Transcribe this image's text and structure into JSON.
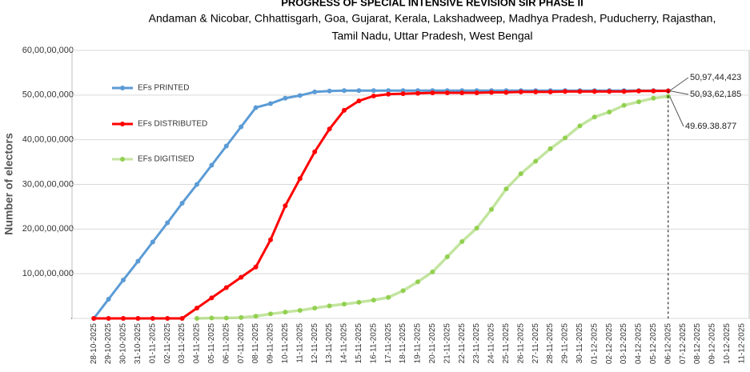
{
  "chart_data": {
    "type": "line",
    "title": "PROGRESS OF SPECIAL INTENSIVE REVISION SIR PHASE II",
    "subtitle": [
      "Andaman & Nicobar, Chhattisgarh, Goa, Gujarat, Kerala, Lakshadweep, Madhya Pradesh, Puducherry, Rajasthan,",
      "Tamil Nadu, Uttar Pradesh, West Bengal"
    ],
    "y_label": "Number of electors",
    "categories": [
      "28-10-2025",
      "29-10-2025",
      "30-10-2025",
      "31-10-2025",
      "01-11-2025",
      "02-11-2025",
      "03-11-2025",
      "04-11-2025",
      "05-11-2025",
      "06-11-2025",
      "07-11-2025",
      "08-11-2025",
      "09-11-2025",
      "10-11-2025",
      "11-11-2025",
      "12-11-2025",
      "13-11-2025",
      "14-11-2025",
      "15-11-2025",
      "16-11-2025",
      "17-11-2025",
      "18-11-2025",
      "19-11-2025",
      "20-11-2025",
      "21-11-2025",
      "22-11-2025",
      "23-11-2025",
      "24-11-2025",
      "25-11-2025",
      "26-11-2025",
      "27-11-2025",
      "28-11-2025",
      "29-11-2025",
      "30-11-2025",
      "01-12-2025",
      "02-12-2025",
      "03-12-2025",
      "04-12-2025",
      "05-12-2025",
      "06-12-2025",
      "07-12-2025",
      "08-12-2025",
      "09-12-2025",
      "10-12-2025",
      "11-12-2025"
    ],
    "series": [
      {
        "name": "EFs PRINTED",
        "color": "#5b9bd5",
        "values": [
          0,
          43000000,
          86000000,
          128000000,
          171000000,
          214000000,
          258000000,
          300000000,
          343000000,
          386000000,
          429000000,
          472000000,
          481000000,
          493000000,
          499000000,
          507000000,
          509000000,
          510000000,
          510000000,
          510000000,
          510000000,
          510000000,
          510000000,
          510000000,
          510000000,
          510000000,
          510000000,
          510000000,
          510000000,
          510000000,
          510000000,
          510000000,
          510000000,
          510000000,
          510000000,
          510000000,
          510000000,
          510000000,
          510000000,
          509744423,
          null,
          null,
          null,
          null,
          null
        ]
      },
      {
        "name": "EFs DISTRIBUTED",
        "color": "#ff0000",
        "values": [
          0,
          0,
          0,
          0,
          0,
          0,
          0,
          23000000,
          46000000,
          69000000,
          92000000,
          115000000,
          176000000,
          252000000,
          313000000,
          373000000,
          424000000,
          466000000,
          487000000,
          498000000,
          502000000,
          503000000,
          504000000,
          505000000,
          505000000,
          505000000,
          505000000,
          506000000,
          506000000,
          507000000,
          507000000,
          507000000,
          508000000,
          508000000,
          508000000,
          508000000,
          508000000,
          509000000,
          509000000,
          509362185,
          null,
          null,
          null,
          null,
          null
        ]
      },
      {
        "name": "EFs DIGITISED",
        "color": "#92d050",
        "values": [
          null,
          null,
          null,
          null,
          null,
          null,
          null,
          0,
          1000000,
          1000000,
          2000000,
          5000000,
          10000000,
          14000000,
          18000000,
          23000000,
          28000000,
          32000000,
          36000000,
          41000000,
          47000000,
          62000000,
          82000000,
          104000000,
          138000000,
          172000000,
          202000000,
          244000000,
          290000000,
          324000000,
          352000000,
          380000000,
          404000000,
          431000000,
          451000000,
          462000000,
          477000000,
          485000000,
          493000000,
          496938877,
          null,
          null,
          null,
          null,
          null
        ]
      }
    ],
    "annotations": [
      "50,97,44,423",
      "50,93,62,185",
      "49.69.38.877"
    ],
    "ylim": [
      0,
      600000000
    ],
    "yticks": [
      {
        "value": 0,
        "label": "-"
      },
      {
        "value": 100000000,
        "label": "10,00,00,000"
      },
      {
        "value": 200000000,
        "label": "20,00,00,000"
      },
      {
        "value": 300000000,
        "label": "30,00,00,000"
      },
      {
        "value": 400000000,
        "label": "40,00,00,000"
      },
      {
        "value": 500000000,
        "label": "50,00,00,000"
      },
      {
        "value": 600000000,
        "label": "60,00,00,000"
      }
    ],
    "grid": true
  }
}
